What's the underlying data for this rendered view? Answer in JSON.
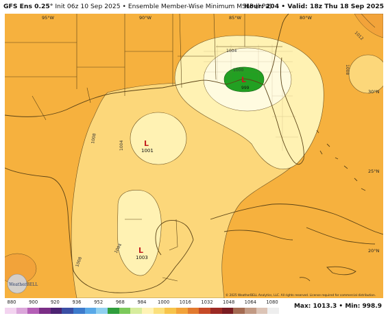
{
  "header": {
    "model": "GFS Ens 0.25°",
    "init": "Init 06z 10 Sep 2025",
    "separator": "•",
    "product": "Ensemble Member-Wise Minimum MSLP (hPa)",
    "hour_label": "Hour:",
    "hour_value": "204",
    "valid_label": "Valid:",
    "valid_value": "18z Thu 18 Sep 2025"
  },
  "map": {
    "lon_labels": [
      "95°W",
      "90°W",
      "85°W",
      "80°W"
    ],
    "lat_labels": [
      "30°N",
      "25°N",
      "20°N"
    ],
    "contour_labels": [
      "1012",
      "1008",
      "1004",
      "1000",
      "1008",
      "1004",
      "1008",
      "1004"
    ],
    "lows": [
      {
        "symbol": "L",
        "value": "999"
      },
      {
        "symbol": "L",
        "value": "1001"
      },
      {
        "symbol": "L",
        "value": "1003"
      }
    ],
    "copyright": "© 2025 WeatherBELL Analytics, LLC. All rights reserved. License required for commercial distribution.",
    "logo_text": "WeatherBELL"
  },
  "colorbar": {
    "ticks": [
      "880",
      "900",
      "920",
      "936",
      "952",
      "968",
      "984",
      "1000",
      "1016",
      "1032",
      "1048",
      "1064",
      "1080"
    ],
    "colors": [
      "#f3d4f0",
      "#dba6da",
      "#b45fb6",
      "#7b2e86",
      "#4c2372",
      "#3b4fa5",
      "#3d7bcc",
      "#59a9e8",
      "#8fd0f0",
      "#2f9e3d",
      "#7cc95b",
      "#d7ec9d",
      "#fff3b5",
      "#fbe07c",
      "#f7c44b",
      "#f2a33a",
      "#e27a2f",
      "#c64a27",
      "#9c2a24",
      "#7a1c22",
      "#a46b52",
      "#c29a84",
      "#dcc4b6",
      "#eeeeee"
    ]
  },
  "stats": {
    "max_label": "Max:",
    "max_value": "1013.3",
    "min_label": "Min:",
    "min_value": "998.9"
  },
  "colors": {
    "c1008_plus": "#f6b13e",
    "c1004_1008": "#fcd77a",
    "c1000_1004": "#fff2b3",
    "below_1000": "#22a022",
    "coast": "#5a4215",
    "low_marker": "#c21f1f"
  }
}
